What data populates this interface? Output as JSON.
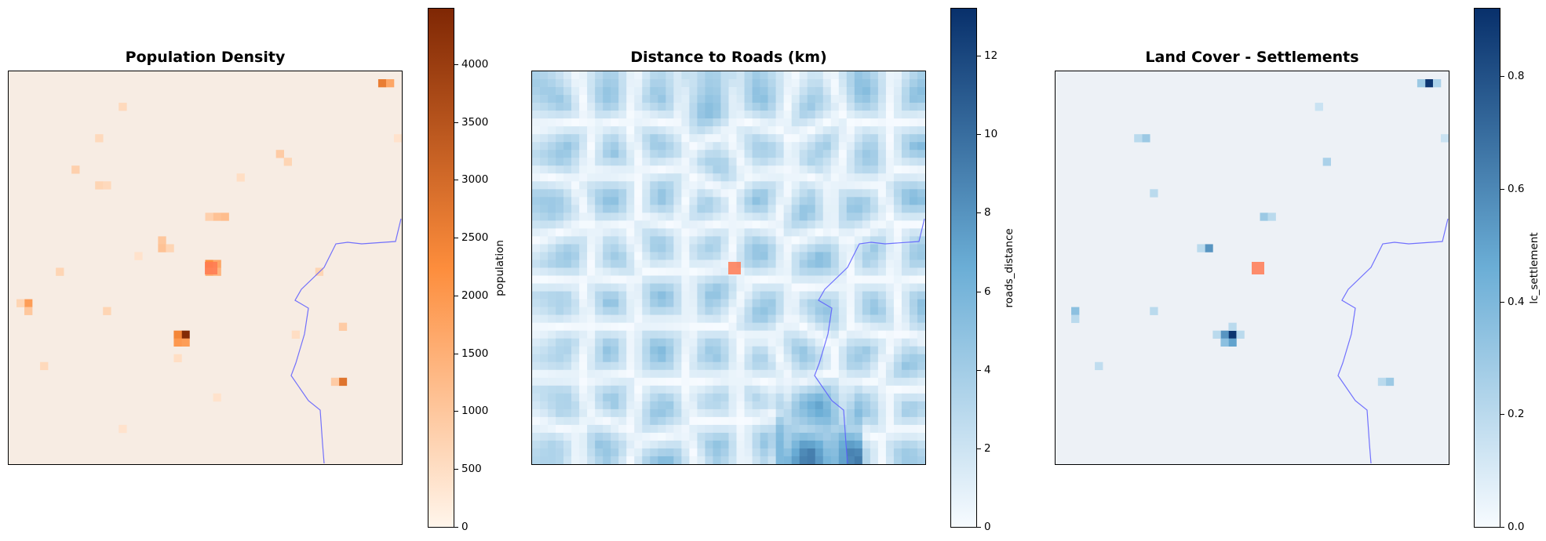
{
  "panels": [
    {
      "title": "Population Density",
      "colorbar_label": "population",
      "ticks": [
        "0",
        "500",
        "1000",
        "1500",
        "2000",
        "2500",
        "3000",
        "3500",
        "4000"
      ],
      "colors": {
        "low": "#fff5eb",
        "mid": "#fd8d3c",
        "high": "#7f2704",
        "background": "#f7ece3"
      }
    },
    {
      "title": "Distance to Roads (km)",
      "colorbar_label": "roads_distance",
      "ticks": [
        "0",
        "2",
        "4",
        "6",
        "8",
        "10",
        "12"
      ],
      "colors": {
        "low": "#f7fbff",
        "mid": "#6baed6",
        "high": "#08306b"
      }
    },
    {
      "title": "Land Cover - Settlements",
      "colorbar_label": "lc_settlement",
      "ticks": [
        "0.0",
        "0.2",
        "0.4",
        "0.6",
        "0.8"
      ],
      "colors": {
        "low": "#f7fbff",
        "mid": "#6baed6",
        "high": "#08306b",
        "background": "#edf1f6"
      }
    }
  ],
  "chart_data": [
    {
      "type": "heatmap",
      "title": "Population Density",
      "colorbar_label": "population",
      "vlim": [
        0,
        4480
      ],
      "grid": "50x50 raster",
      "background_value": 100,
      "hotspots": [
        {
          "col": 22,
          "row": 33,
          "value": 4400
        },
        {
          "col": 21,
          "row": 33,
          "value": 2400
        },
        {
          "col": 21,
          "row": 34,
          "value": 2000
        },
        {
          "col": 22,
          "row": 34,
          "value": 1900
        },
        {
          "col": 25,
          "row": 24,
          "value": 2200
        },
        {
          "col": 26,
          "row": 24,
          "value": 1700
        },
        {
          "col": 25,
          "row": 25,
          "value": 1600
        },
        {
          "col": 26,
          "row": 25,
          "value": 1400
        },
        {
          "col": 47,
          "row": 1,
          "value": 2600
        },
        {
          "col": 48,
          "row": 1,
          "value": 1700
        },
        {
          "col": 42,
          "row": 39,
          "value": 2800
        },
        {
          "col": 41,
          "row": 39,
          "value": 900
        },
        {
          "col": 2,
          "row": 29,
          "value": 1900
        },
        {
          "col": 2,
          "row": 30,
          "value": 1000
        },
        {
          "col": 1,
          "row": 29,
          "value": 700
        },
        {
          "col": 26,
          "row": 18,
          "value": 1100
        },
        {
          "col": 27,
          "row": 18,
          "value": 1200
        },
        {
          "col": 25,
          "row": 18,
          "value": 800
        },
        {
          "col": 19,
          "row": 21,
          "value": 1000
        },
        {
          "col": 19,
          "row": 22,
          "value": 1100
        },
        {
          "col": 20,
          "row": 22,
          "value": 700
        },
        {
          "col": 34,
          "row": 10,
          "value": 900
        },
        {
          "col": 35,
          "row": 11,
          "value": 700
        },
        {
          "col": 11,
          "row": 14,
          "value": 700
        },
        {
          "col": 12,
          "row": 14,
          "value": 600
        },
        {
          "col": 11,
          "row": 8,
          "value": 600
        },
        {
          "col": 8,
          "row": 12,
          "value": 800
        },
        {
          "col": 14,
          "row": 4,
          "value": 600
        },
        {
          "col": 12,
          "row": 30,
          "value": 700
        },
        {
          "col": 6,
          "row": 25,
          "value": 700
        },
        {
          "col": 4,
          "row": 37,
          "value": 600
        },
        {
          "col": 42,
          "row": 32,
          "value": 900
        },
        {
          "col": 39,
          "row": 25,
          "value": 700
        },
        {
          "col": 21,
          "row": 36,
          "value": 500
        },
        {
          "col": 26,
          "row": 41,
          "value": 400
        },
        {
          "col": 29,
          "row": 13,
          "value": 500
        },
        {
          "col": 14,
          "row": 45,
          "value": 400
        },
        {
          "col": 36,
          "row": 33,
          "value": 500
        },
        {
          "col": 16,
          "row": 23,
          "value": 400
        },
        {
          "col": 49,
          "row": 8,
          "value": 400
        }
      ]
    },
    {
      "type": "heatmap",
      "title": "Distance to Roads (km)",
      "colorbar_label": "roads_distance",
      "vlim": [
        0,
        13.2
      ],
      "grid": "50x50 raster",
      "max_value": 13
    },
    {
      "type": "heatmap",
      "title": "Land Cover - Settlements",
      "colorbar_label": "lc_settlement",
      "vlim": [
        0,
        0.92
      ],
      "grid": "50x50 raster",
      "background_value": 0.08,
      "hotspots": [
        {
          "col": 47,
          "row": 1,
          "value": 0.9
        },
        {
          "col": 46,
          "row": 1,
          "value": 0.3
        },
        {
          "col": 48,
          "row": 1,
          "value": 0.25
        },
        {
          "col": 22,
          "row": 33,
          "value": 0.9
        },
        {
          "col": 21,
          "row": 33,
          "value": 0.55
        },
        {
          "col": 22,
          "row": 34,
          "value": 0.5
        },
        {
          "col": 21,
          "row": 34,
          "value": 0.35
        },
        {
          "col": 20,
          "row": 33,
          "value": 0.2
        },
        {
          "col": 23,
          "row": 33,
          "value": 0.2
        },
        {
          "col": 22,
          "row": 32,
          "value": 0.2
        },
        {
          "col": 19,
          "row": 22,
          "value": 0.55
        },
        {
          "col": 18,
          "row": 22,
          "value": 0.2
        },
        {
          "col": 26,
          "row": 18,
          "value": 0.3
        },
        {
          "col": 27,
          "row": 18,
          "value": 0.2
        },
        {
          "col": 11,
          "row": 8,
          "value": 0.3
        },
        {
          "col": 10,
          "row": 8,
          "value": 0.2
        },
        {
          "col": 2,
          "row": 30,
          "value": 0.35
        },
        {
          "col": 2,
          "row": 31,
          "value": 0.2
        },
        {
          "col": 34,
          "row": 11,
          "value": 0.25
        },
        {
          "col": 42,
          "row": 39,
          "value": 0.3
        },
        {
          "col": 41,
          "row": 39,
          "value": 0.2
        },
        {
          "col": 12,
          "row": 15,
          "value": 0.2
        },
        {
          "col": 12,
          "row": 30,
          "value": 0.2
        },
        {
          "col": 5,
          "row": 37,
          "value": 0.18
        },
        {
          "col": 33,
          "row": 4,
          "value": 0.15
        },
        {
          "col": 49,
          "row": 8,
          "value": 0.15
        }
      ]
    }
  ]
}
